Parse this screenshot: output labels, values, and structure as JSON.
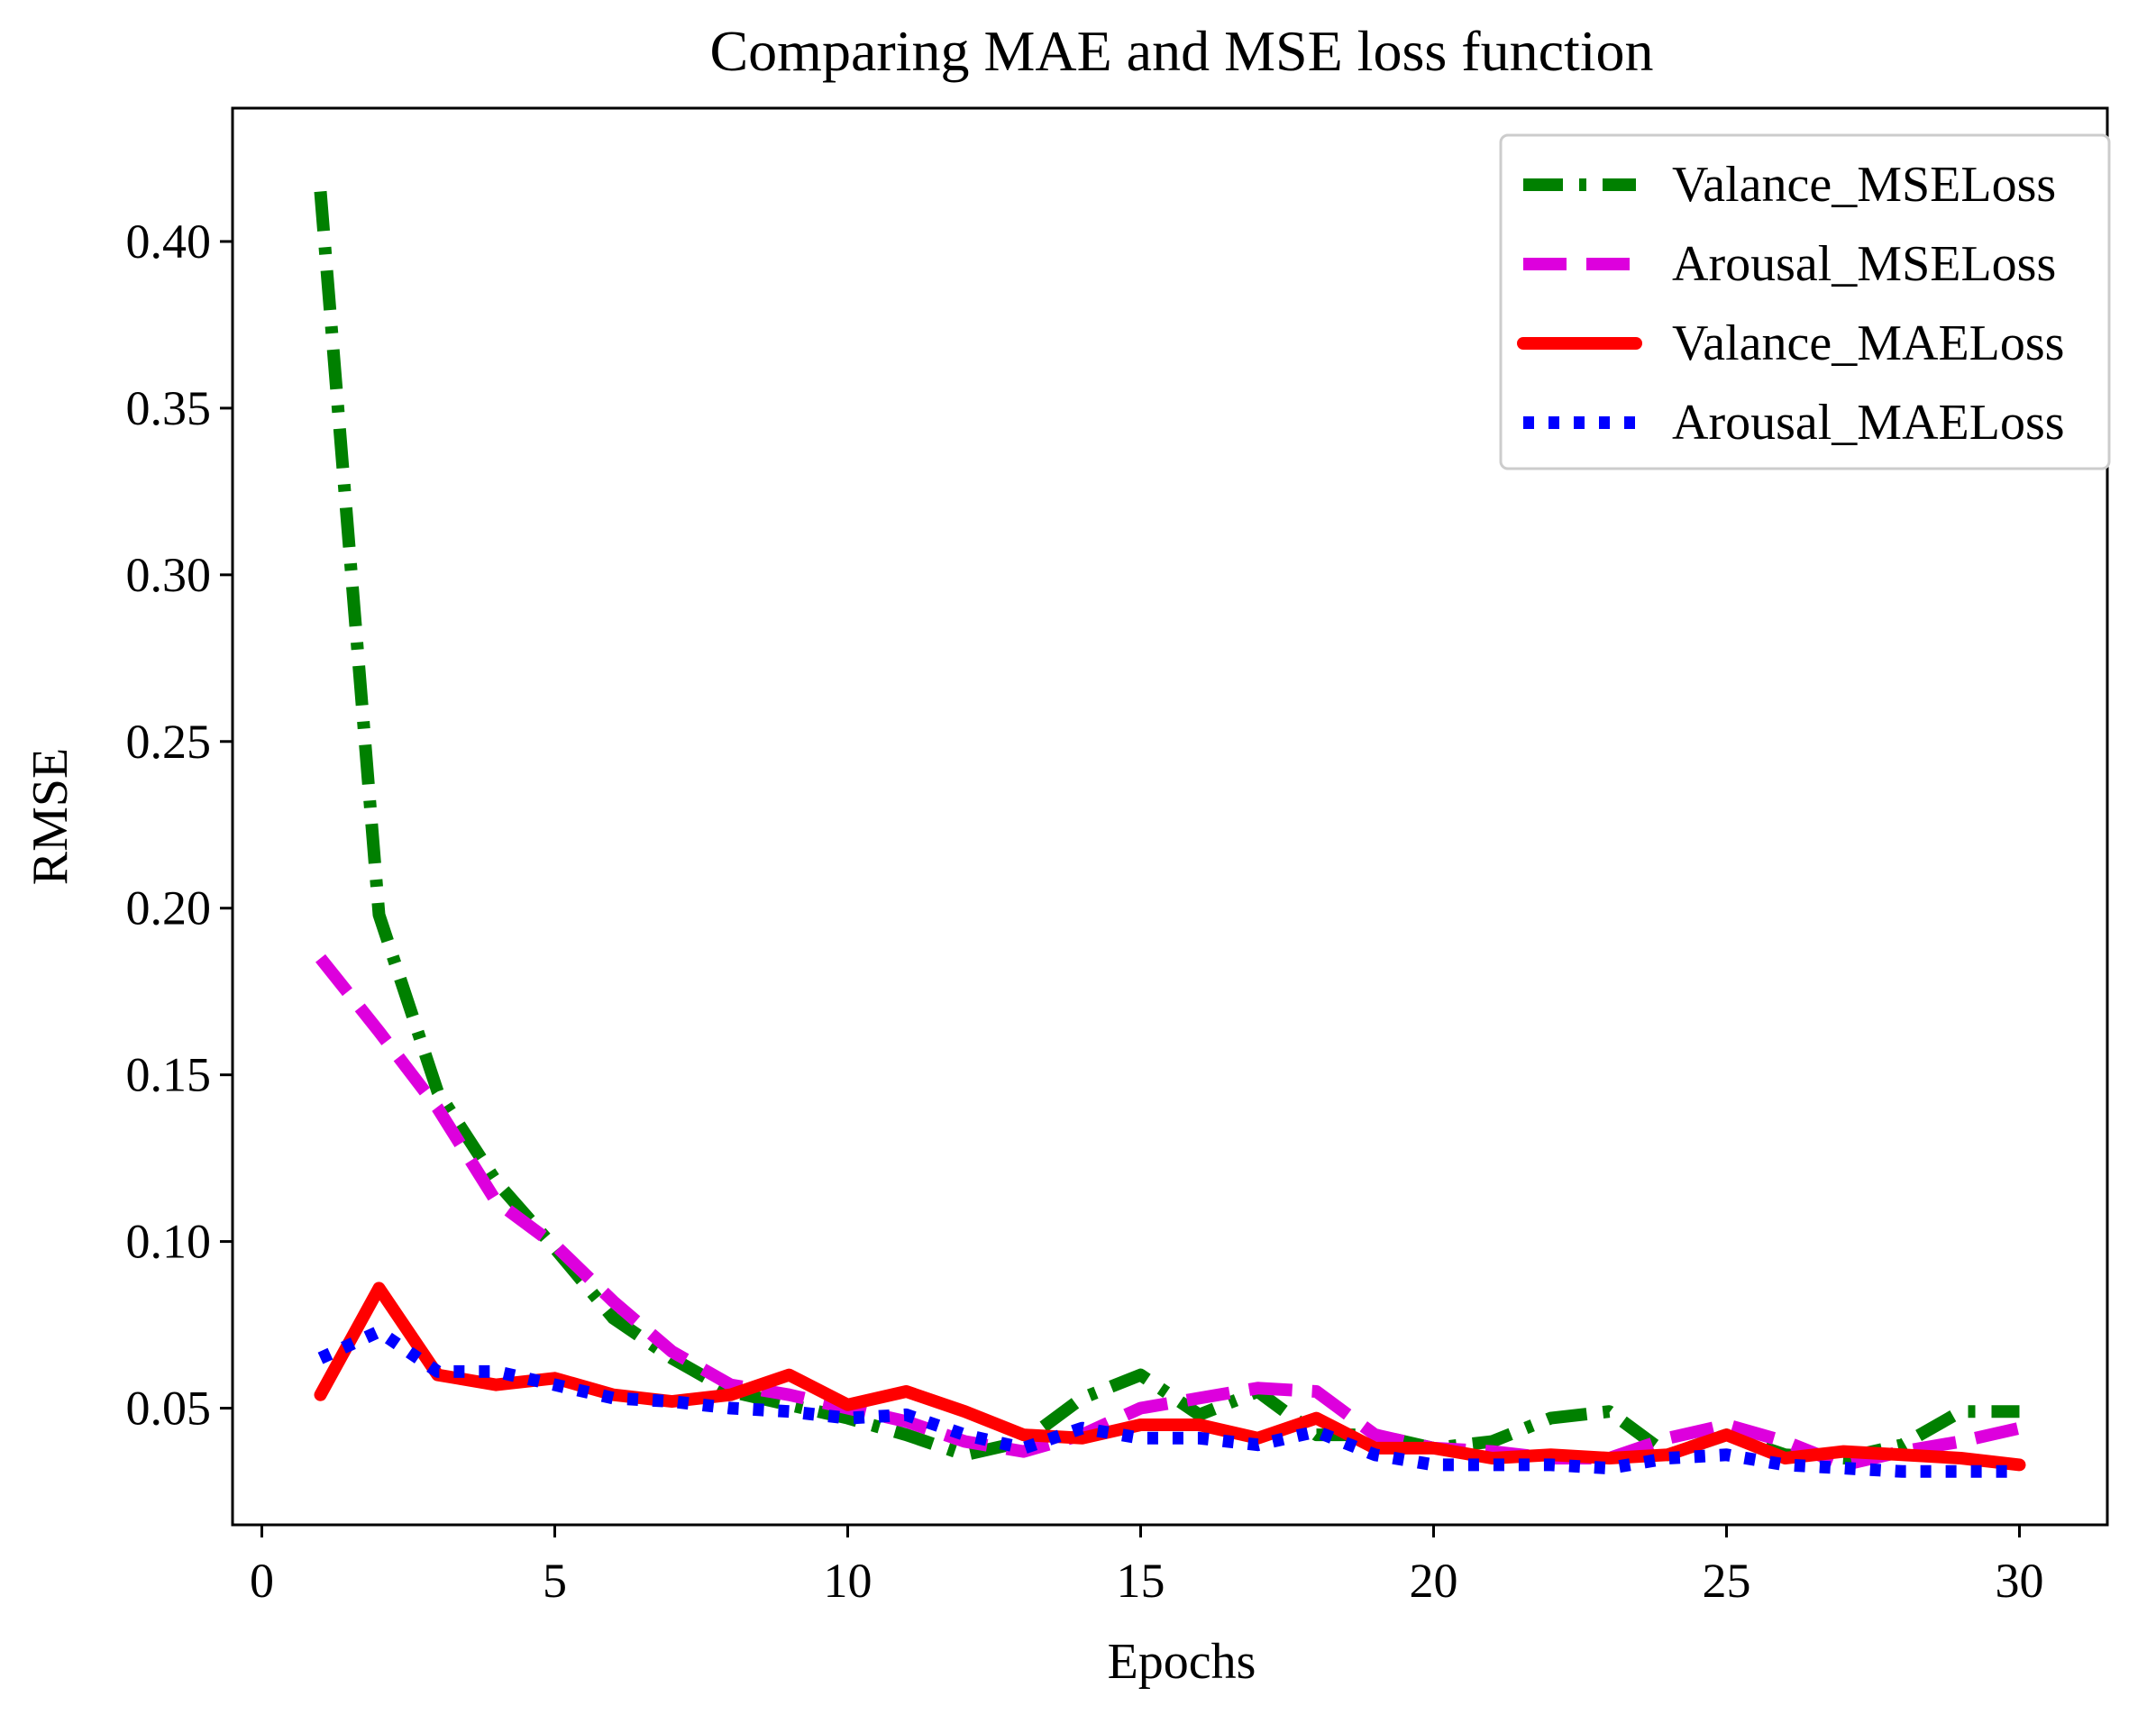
{
  "chart_data": {
    "type": "line",
    "title": "Comparing MAE and MSE loss function",
    "xlabel": "Epochs",
    "ylabel": "RMSE",
    "xlim": [
      -0.5,
      31.5
    ],
    "ylim": [
      0.015,
      0.44
    ],
    "xticks": [
      0,
      5,
      10,
      15,
      20,
      25,
      30
    ],
    "xtick_labels": [
      "0",
      "5",
      "10",
      "15",
      "20",
      "25",
      "30"
    ],
    "yticks": [
      0.05,
      0.1,
      0.15,
      0.2,
      0.25,
      0.3,
      0.35,
      0.4
    ],
    "ytick_labels": [
      "0.05",
      "0.10",
      "0.15",
      "0.20",
      "0.25",
      "0.30",
      "0.35",
      "0.40"
    ],
    "grid": false,
    "legend_position": "top-right",
    "x": [
      1,
      2,
      3,
      4,
      5,
      6,
      7,
      8,
      9,
      10,
      11,
      12,
      13,
      14,
      15,
      16,
      17,
      18,
      19,
      20,
      21,
      22,
      23,
      24,
      25,
      26,
      27,
      28,
      29,
      30
    ],
    "series": [
      {
        "name": "Valance_MSELoss",
        "color": "#008000",
        "style": "dashdot",
        "values": [
          0.415,
          0.198,
          0.145,
          0.118,
          0.098,
          0.077,
          0.065,
          0.055,
          0.051,
          0.047,
          0.042,
          0.036,
          0.04,
          0.053,
          0.06,
          0.048,
          0.055,
          0.042,
          0.042,
          0.038,
          0.04,
          0.047,
          0.049,
          0.036,
          0.042,
          0.036,
          0.035,
          0.039,
          0.049,
          0.049
        ]
      },
      {
        "name": "Arousal_MSELoss",
        "color": "#dd00dd",
        "style": "dashed",
        "values": [
          0.185,
          0.163,
          0.14,
          0.112,
          0.099,
          0.082,
          0.067,
          0.057,
          0.054,
          0.05,
          0.046,
          0.04,
          0.037,
          0.042,
          0.05,
          0.053,
          0.056,
          0.055,
          0.042,
          0.038,
          0.037,
          0.035,
          0.035,
          0.041,
          0.045,
          0.04,
          0.033,
          0.037,
          0.04,
          0.044
        ]
      },
      {
        "name": "Valance_MAELoss",
        "color": "#ff0000",
        "style": "solid",
        "values": [
          0.054,
          0.086,
          0.06,
          0.057,
          0.059,
          0.054,
          0.052,
          0.054,
          0.06,
          0.051,
          0.055,
          0.049,
          0.042,
          0.041,
          0.045,
          0.045,
          0.041,
          0.047,
          0.038,
          0.038,
          0.035,
          0.036,
          0.035,
          0.036,
          0.042,
          0.035,
          0.037,
          0.036,
          0.035,
          0.033
        ]
      },
      {
        "name": "Arousal_MAELoss",
        "color": "#0000ff",
        "style": "dotted",
        "values": [
          0.065,
          0.073,
          0.061,
          0.061,
          0.057,
          0.053,
          0.052,
          0.05,
          0.049,
          0.047,
          0.048,
          0.042,
          0.038,
          0.044,
          0.041,
          0.041,
          0.039,
          0.043,
          0.036,
          0.033,
          0.033,
          0.033,
          0.032,
          0.035,
          0.036,
          0.033,
          0.032,
          0.031,
          0.031,
          0.031
        ]
      }
    ]
  }
}
